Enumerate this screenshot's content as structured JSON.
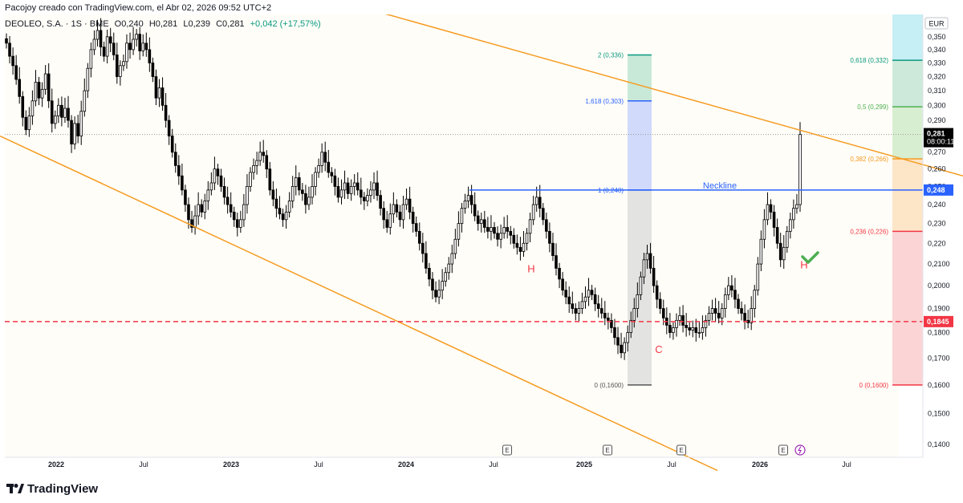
{
  "header": {
    "credit": "Pacojoy creado con TradingView.com, el Abr 02, 2026 09:52 UTC+2"
  },
  "legend": {
    "symbol": "DEOLEO, S.A. · 1S · BME",
    "open": "O0,240",
    "high": "H0,281",
    "low": "L0,239",
    "close": "C0,281",
    "change": "+0,042 (+17,57%)"
  },
  "footer": {
    "brand": "TradingView"
  },
  "colors": {
    "candle_up": "#ffffff",
    "candle_down": "#000000",
    "channel": "#f59b21",
    "neckline": "#2962ff",
    "support": "#f23645",
    "pattern_label": "#f23645",
    "checkmark": "#4caf50",
    "price_tag": "#000000",
    "neckline_tag": "#2962ff",
    "support_tag": "#f23645"
  },
  "chart_data": {
    "type": "candlestick",
    "currency": "EUR",
    "x_axis_labels": [
      "2022",
      "Jul",
      "2023",
      "Jul",
      "2024",
      "Jul",
      "2025",
      "Jul",
      "2026",
      "Jul"
    ],
    "y_axis_labels": [
      "0,360",
      "0,350",
      "0,340",
      "0,330",
      "0,320",
      "0,310",
      "0,300",
      "0,290",
      "0,280",
      "0,270",
      "0,260",
      "0,250",
      "0,240",
      "0,230",
      "0,220",
      "0,2100",
      "0,2000",
      "0,1900",
      "0,1800",
      "0,1700",
      "0,1600",
      "0,1500",
      "0,1400"
    ],
    "ylim": [
      0.136,
      0.368
    ],
    "y_scale": "log",
    "last_price": {
      "value": "0,281",
      "countdown": "08:00:11"
    },
    "neckline_tag": "0,248",
    "support_tag": "0,1845",
    "closes": [
      0.345,
      0.335,
      0.328,
      0.318,
      0.306,
      0.292,
      0.284,
      0.293,
      0.303,
      0.316,
      0.305,
      0.311,
      0.322,
      0.303,
      0.288,
      0.293,
      0.3,
      0.292,
      0.298,
      0.29,
      0.275,
      0.288,
      0.28,
      0.296,
      0.31,
      0.326,
      0.34,
      0.348,
      0.355,
      0.342,
      0.335,
      0.35,
      0.345,
      0.336,
      0.32,
      0.328,
      0.331,
      0.345,
      0.34,
      0.348,
      0.352,
      0.339,
      0.345,
      0.34,
      0.33,
      0.32,
      0.305,
      0.312,
      0.3,
      0.29,
      0.28,
      0.27,
      0.262,
      0.256,
      0.248,
      0.24,
      0.232,
      0.228,
      0.234,
      0.24,
      0.236,
      0.242,
      0.248,
      0.252,
      0.26,
      0.256,
      0.25,
      0.244,
      0.24,
      0.236,
      0.232,
      0.228,
      0.232,
      0.24,
      0.25,
      0.258,
      0.262,
      0.265,
      0.27,
      0.268,
      0.26,
      0.248,
      0.243,
      0.238,
      0.235,
      0.232,
      0.236,
      0.242,
      0.25,
      0.255,
      0.248,
      0.246,
      0.24,
      0.244,
      0.25,
      0.258,
      0.262,
      0.27,
      0.264,
      0.258,
      0.256,
      0.25,
      0.244,
      0.248,
      0.252,
      0.246,
      0.25,
      0.252,
      0.248,
      0.244,
      0.242,
      0.245,
      0.248,
      0.252,
      0.245,
      0.238,
      0.232,
      0.228,
      0.235,
      0.24,
      0.236,
      0.232,
      0.24,
      0.243,
      0.236,
      0.23,
      0.226,
      0.22,
      0.215,
      0.208,
      0.203,
      0.198,
      0.195,
      0.198,
      0.202,
      0.206,
      0.21,
      0.215,
      0.222,
      0.23,
      0.238,
      0.242,
      0.245,
      0.24,
      0.234,
      0.23,
      0.232,
      0.228,
      0.226,
      0.228,
      0.225,
      0.222,
      0.225,
      0.228,
      0.226,
      0.224,
      0.22,
      0.218,
      0.216,
      0.22,
      0.225,
      0.232,
      0.24,
      0.244,
      0.238,
      0.232,
      0.226,
      0.22,
      0.214,
      0.208,
      0.203,
      0.198,
      0.195,
      0.192,
      0.19,
      0.188,
      0.19,
      0.193,
      0.195,
      0.198,
      0.196,
      0.192,
      0.19,
      0.188,
      0.186,
      0.185,
      0.182,
      0.178,
      0.175,
      0.172,
      0.176,
      0.18,
      0.185,
      0.19,
      0.196,
      0.204,
      0.212,
      0.215,
      0.208,
      0.2,
      0.194,
      0.19,
      0.186,
      0.183,
      0.18,
      0.182,
      0.185,
      0.187,
      0.183,
      0.182,
      0.181,
      0.182,
      0.18,
      0.18,
      0.182,
      0.185,
      0.188,
      0.19,
      0.188,
      0.186,
      0.19,
      0.196,
      0.2,
      0.198,
      0.194,
      0.19,
      0.188,
      0.185,
      0.184,
      0.19,
      0.198,
      0.21,
      0.222,
      0.232,
      0.24,
      0.236,
      0.228,
      0.22,
      0.212,
      0.218,
      0.226,
      0.232,
      0.238,
      0.24,
      0.281
    ],
    "channel": {
      "upper": [
        [
          0.2445,
          0.405
        ],
        [
          1.0,
          0.256
        ]
      ],
      "lower": [
        [
          0.0,
          0.28
        ],
        [
          0.745,
          0.132
        ]
      ]
    },
    "neckline": {
      "label": "Neckline",
      "value": 0.248
    },
    "support": {
      "value": 0.1845
    },
    "fib_extension": {
      "levels": [
        {
          "label": "2 (0,336)",
          "value": 0.336
        },
        {
          "label": "1,618 (0,303)",
          "value": 0.303
        },
        {
          "label": "1 (0,248)",
          "value": 0.248
        },
        {
          "label": "0 (0,1600)",
          "value": 0.16
        }
      ]
    },
    "fib_retracement": {
      "levels": [
        {
          "label": "0,618 (0,332)",
          "value": 0.332
        },
        {
          "label": "0,5 (0,299)",
          "value": 0.299
        },
        {
          "label": "0,382 (0,266)",
          "value": 0.266
        },
        {
          "label": "0,236 (0,226)",
          "value": 0.226
        },
        {
          "label": "0 (0,1600)",
          "value": 0.16
        }
      ]
    },
    "annotations": [
      {
        "text": "H",
        "value": 0.206
      },
      {
        "text": "C",
        "value": 0.172
      },
      {
        "text": "H",
        "value": 0.208
      }
    ],
    "event_markers": [
      "E",
      "E",
      "E",
      "E"
    ]
  }
}
